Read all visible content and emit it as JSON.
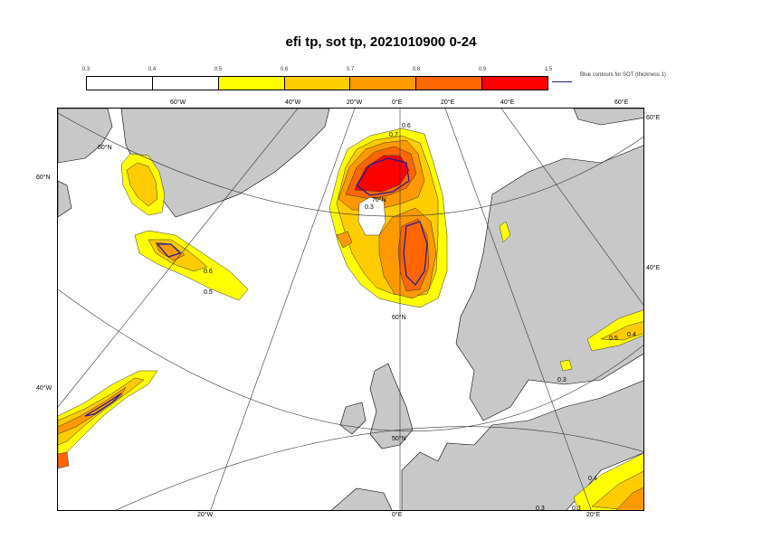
{
  "title": "efi tp, sot tp, 2021010900 0-24",
  "legend": {
    "ticks": [
      "0.3",
      "0.4",
      "0.5",
      "0.6",
      "0.7",
      "0.8",
      "0.9",
      "1.5"
    ],
    "colors": [
      "#ffffff",
      "#ffffff",
      "#ffff00",
      "#ffcc00",
      "#ff9900",
      "#ff6600",
      "#ff0000"
    ],
    "sot_label": "Blue contours for SOT (thickness 1)",
    "sot_color": "#1a1a9a"
  },
  "map": {
    "land_color": "#c8c8c8",
    "sea_color": "#ffffff",
    "labels_top": [
      "60°W",
      "40°W",
      "20°W",
      "0°E",
      "20°E",
      "40°E",
      "60°E"
    ],
    "labels_bottom": [
      "20°W",
      "0°E",
      "20°E"
    ],
    "labels_left": [
      "60°N",
      "40°W"
    ],
    "labels_right": [
      "60°E",
      "40°E"
    ],
    "labels_inner": [
      "60°N",
      "70°N",
      "60°N",
      "50°N"
    ],
    "contour_labels": [
      "0.6",
      "0.7",
      "0.5",
      "0.3",
      "0.6",
      "0.5",
      "0.4",
      "0.3",
      "0.5",
      "0.4",
      "0.3",
      "0.3",
      "0.3",
      "0.4"
    ]
  }
}
